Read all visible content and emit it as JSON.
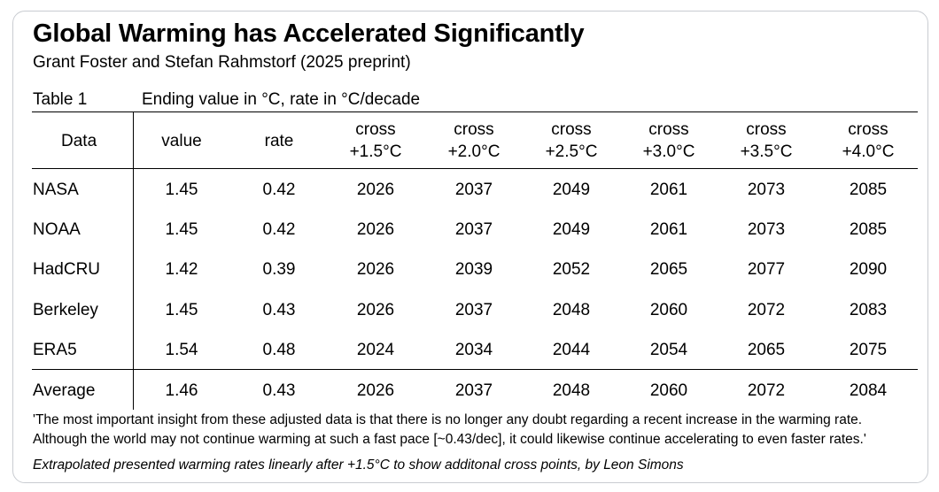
{
  "title": "Global Warming has Accelerated Significantly",
  "subtitle": "Grant Foster and Stefan Rahmstorf (2025 preprint)",
  "table": {
    "label": "Table 1",
    "description": "Ending value in °C, rate in °C/decade",
    "headers": [
      {
        "line1": "Data",
        "line2": ""
      },
      {
        "line1": "value",
        "line2": ""
      },
      {
        "line1": "rate",
        "line2": ""
      },
      {
        "line1": "cross",
        "line2": "+1.5°C"
      },
      {
        "line1": "cross",
        "line2": "+2.0°C"
      },
      {
        "line1": "cross",
        "line2": "+2.5°C"
      },
      {
        "line1": "cross",
        "line2": "+3.0°C"
      },
      {
        "line1": "cross",
        "line2": "+3.5°C"
      },
      {
        "line1": "cross",
        "line2": "+4.0°C"
      }
    ],
    "rows": [
      [
        "NASA",
        "1.45",
        "0.42",
        "2026",
        "2037",
        "2049",
        "2061",
        "2073",
        "2085"
      ],
      [
        "NOAA",
        "1.45",
        "0.42",
        "2026",
        "2037",
        "2049",
        "2061",
        "2073",
        "2085"
      ],
      [
        "HadCRU",
        "1.42",
        "0.39",
        "2026",
        "2039",
        "2052",
        "2065",
        "2077",
        "2090"
      ],
      [
        "Berkeley",
        "1.45",
        "0.43",
        "2026",
        "2037",
        "2048",
        "2060",
        "2072",
        "2083"
      ],
      [
        "ERA5",
        "1.54",
        "0.48",
        "2024",
        "2034",
        "2044",
        "2054",
        "2065",
        "2075"
      ],
      [
        "Average",
        "1.46",
        "0.43",
        "2026",
        "2037",
        "2048",
        "2060",
        "2072",
        "2084"
      ]
    ]
  },
  "quote": {
    "line1": "'The most important insight from these adjusted data is that there is no longer any doubt regarding a recent increase in the warming rate.",
    "line2": "Although the world may not continue warming at such a fast pace [~0.43/dec], it could likewise continue accelerating to even faster rates.'"
  },
  "credit": "Extrapolated presented warming rates linearly after +1.5°C to show additonal cross points, by Leon Simons"
}
